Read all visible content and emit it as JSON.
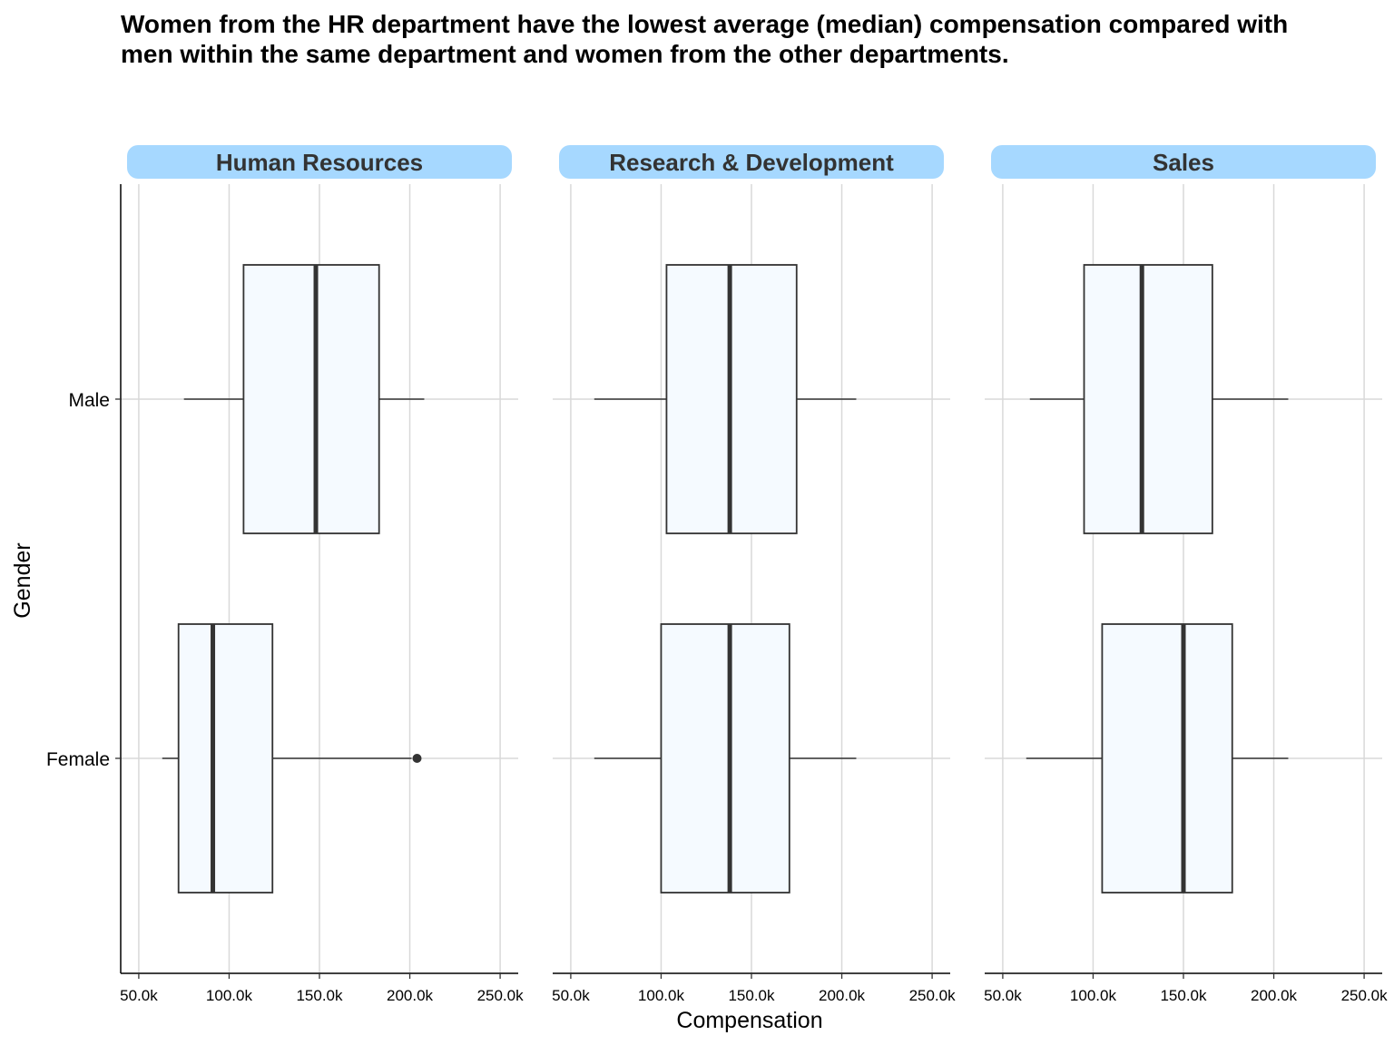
{
  "chart_data": {
    "type": "boxplot",
    "title": "Women from the HR department have the lowest average (median) compensation compared with men within the same department and women from the other departments.",
    "xlabel": "Compensation",
    "ylabel": "Gender",
    "xlim": [
      40000,
      260000
    ],
    "x_ticks": [
      50000,
      100000,
      150000,
      200000,
      250000
    ],
    "x_tick_labels": [
      "50.0k",
      "100.0k",
      "150.0k",
      "200.0k",
      "250.0k"
    ],
    "categories": [
      "Male",
      "Female"
    ],
    "grid": "on",
    "legend": "none",
    "colors": {
      "box_fill": "#F5FAFF",
      "box_stroke": "#333333",
      "median": "#333333",
      "strip_fill": "#A6D8FF",
      "strip_text": "#333333",
      "grid": "#D9D9D9"
    },
    "panels": [
      {
        "name": "Human Resources",
        "boxes": [
          {
            "category": "Male",
            "whisker_low": 75000,
            "q1": 108000,
            "median": 148000,
            "q3": 183000,
            "whisker_high": 208000,
            "outliers": []
          },
          {
            "category": "Female",
            "whisker_low": 63000,
            "q1": 72000,
            "median": 91000,
            "q3": 124000,
            "whisker_high": 201000,
            "outliers": [
              204000
            ]
          }
        ]
      },
      {
        "name": "Research & Development",
        "boxes": [
          {
            "category": "Male",
            "whisker_low": 63000,
            "q1": 103000,
            "median": 138000,
            "q3": 175000,
            "whisker_high": 208000,
            "outliers": []
          },
          {
            "category": "Female",
            "whisker_low": 63000,
            "q1": 100000,
            "median": 138000,
            "q3": 171000,
            "whisker_high": 208000,
            "outliers": []
          }
        ]
      },
      {
        "name": "Sales",
        "boxes": [
          {
            "category": "Male",
            "whisker_low": 65000,
            "q1": 95000,
            "median": 127000,
            "q3": 166000,
            "whisker_high": 208000,
            "outliers": []
          },
          {
            "category": "Female",
            "whisker_low": 63000,
            "q1": 105000,
            "median": 150000,
            "q3": 177000,
            "whisker_high": 208000,
            "outliers": []
          }
        ]
      }
    ]
  }
}
